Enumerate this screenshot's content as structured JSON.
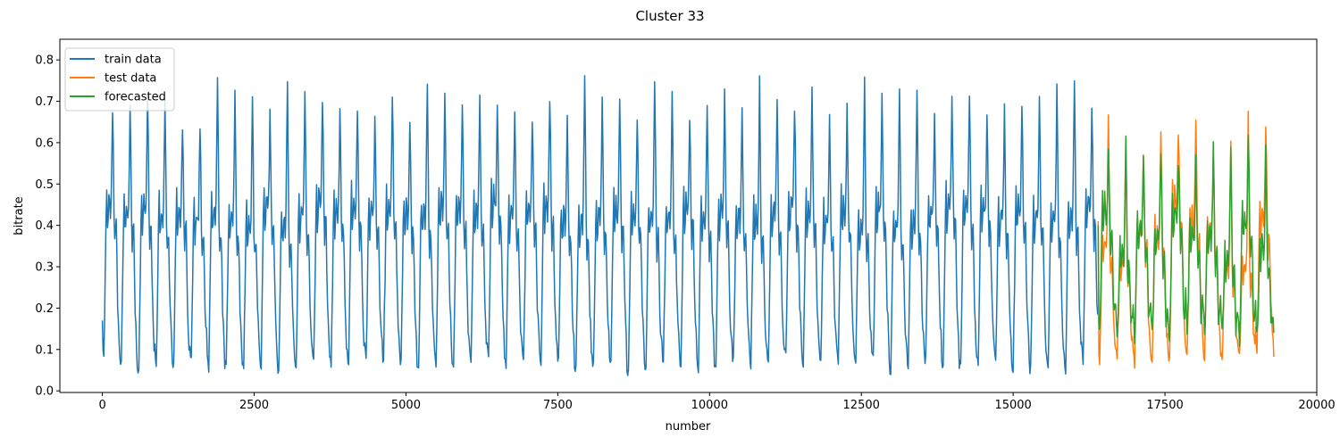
{
  "chart_data": {
    "type": "line",
    "title": "Cluster 33",
    "xlabel": "number",
    "ylabel": "bitrate",
    "xlim": [
      -700,
      20000
    ],
    "ylim": [
      -0.004,
      0.85
    ],
    "xticks": [
      0,
      2500,
      5000,
      7500,
      10000,
      12500,
      15000,
      17500,
      20000
    ],
    "xtick_labels": [
      "0",
      "2500",
      "5000",
      "7500",
      "10000",
      "12500",
      "15000",
      "17500",
      "20000"
    ],
    "yticks": [
      0.0,
      0.1,
      0.2,
      0.3,
      0.4,
      0.5,
      0.6,
      0.7,
      0.8
    ],
    "ytick_labels": [
      "0.0",
      "0.1",
      "0.2",
      "0.3",
      "0.4",
      "0.5",
      "0.6",
      "0.7",
      "0.8"
    ],
    "grid": false,
    "legend_position": "top-left",
    "series": [
      {
        "name": "train data",
        "color": "#1f77b4",
        "x_range": [
          0,
          16400
        ],
        "period": 288,
        "low_range": [
          0.04,
          0.07
        ],
        "high_range": [
          0.7,
          0.81
        ],
        "mid_level": [
          0.43,
          0.49
        ]
      },
      {
        "name": "test data",
        "color": "#ff7f0e",
        "x_range": [
          16400,
          19300
        ],
        "period": 288,
        "low_range": [
          0.05,
          0.09
        ],
        "high_range": [
          0.6,
          0.77
        ],
        "mid_level": [
          0.32,
          0.5
        ]
      },
      {
        "name": "forecasted",
        "color": "#2ca02c",
        "x_range": [
          16400,
          19300
        ],
        "period": 288,
        "low_range": [
          0.11,
          0.15
        ],
        "high_range": [
          0.6,
          0.68
        ],
        "mid_level": [
          0.3,
          0.47
        ]
      }
    ]
  }
}
